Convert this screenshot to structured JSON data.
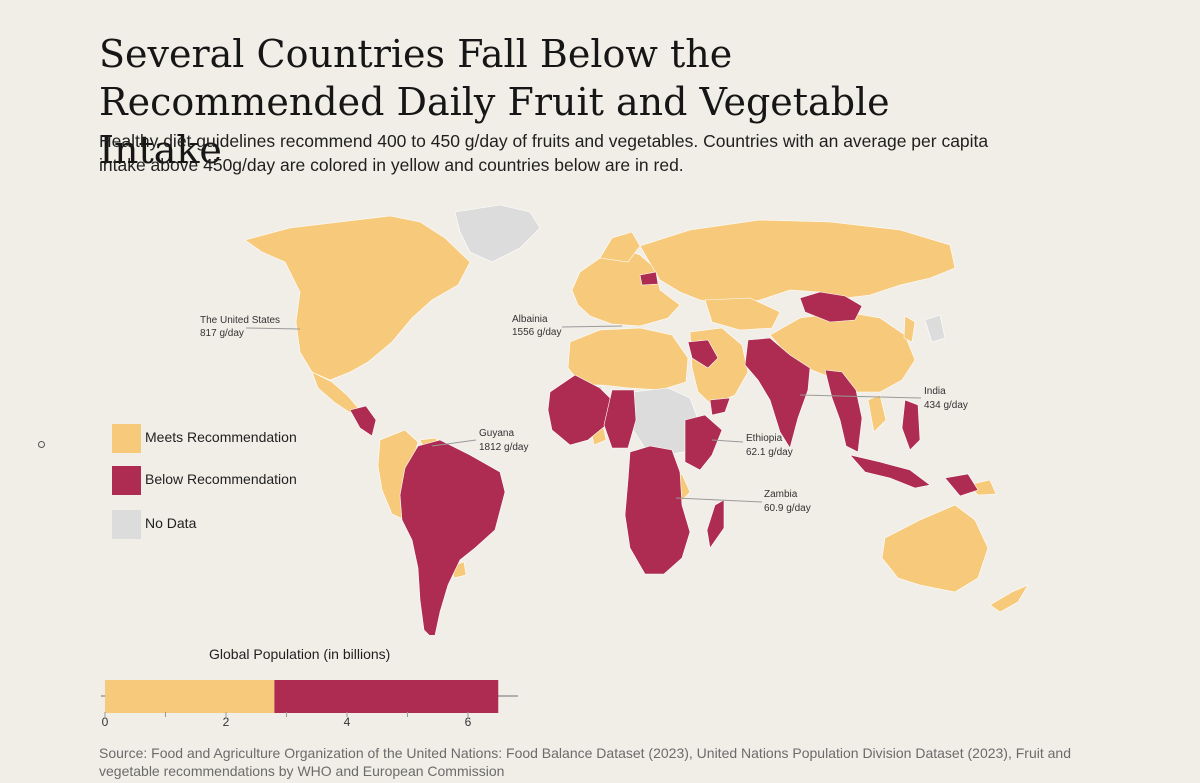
{
  "title": "Several Countries Fall Below the Recommended Daily Fruit and Vegetable Intake",
  "subtitle": "Healthy diet guidelines recommend 400 to 450 g/day of fruits and vegetables. Countries with an average per capita intake above 450g/day are colored in yellow and countries below are in red.",
  "colors": {
    "meets": "#f7c97a",
    "below": "#ae2b51",
    "nodata": "#dcdcdc",
    "background": "#f1eee7"
  },
  "legend": [
    {
      "label": "Meets Recommendation",
      "color": "#f7c97a"
    },
    {
      "label": "Below Recommendation",
      "color": "#ae2b51"
    },
    {
      "label": "No Data",
      "color": "#dcdcdc"
    }
  ],
  "annotations": [
    {
      "name": "The United States",
      "value": "817 g/day"
    },
    {
      "name": "Albainia",
      "value": "1556 g/day"
    },
    {
      "name": "Guyana",
      "value": "1812 g/day"
    },
    {
      "name": "Ethiopia",
      "value": "62.1 g/day"
    },
    {
      "name": "Zambia",
      "value": "60.9 g/day"
    },
    {
      "name": "India",
      "value": "434 g/day"
    }
  ],
  "chart_data": {
    "type": "bar",
    "title": "Global Population (in billions)",
    "orientation": "horizontal-stacked",
    "series": [
      {
        "name": "Meets Recommendation",
        "value": 2.8
      },
      {
        "name": "Below Recommendation",
        "value": 3.7
      }
    ],
    "xlim": [
      0,
      6.8
    ],
    "ticks": [
      0,
      2,
      4,
      6
    ],
    "grid": false
  },
  "source": "Source: Food and Agriculture Organization of the United Nations: Food Balance Dataset (2023), United Nations Population Division Dataset (2023), Fruit and vegetable recommendations by WHO and European Commission"
}
